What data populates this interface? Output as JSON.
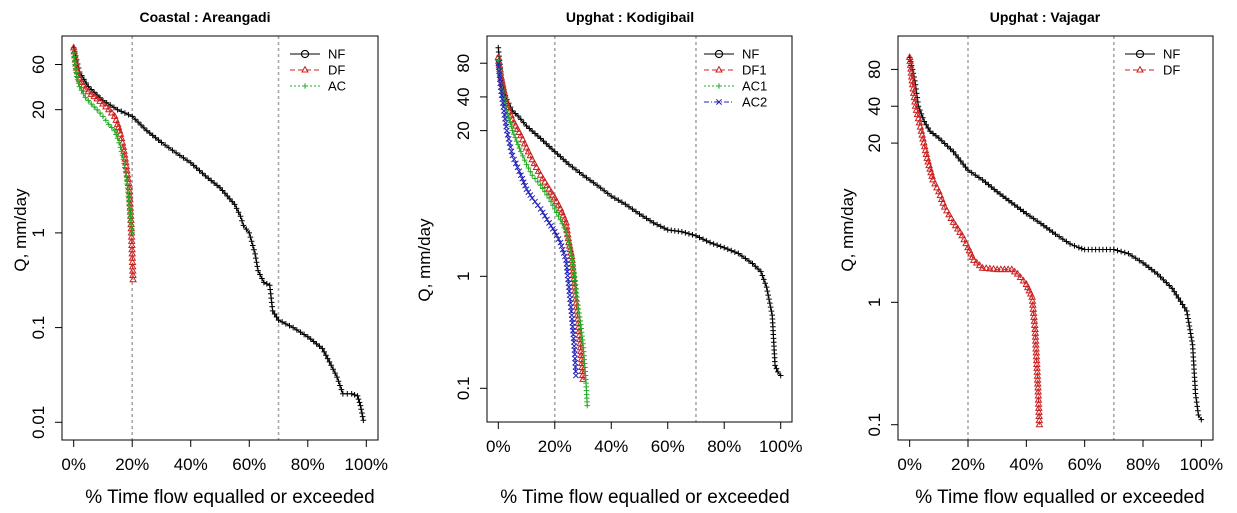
{
  "chart_data": [
    {
      "type": "line",
      "title": "Coastal : Areangadi",
      "xlabel": "% Time flow equalled or exceeded",
      "ylabel": "Q, mm/day",
      "y_scale": "log",
      "xlim": [
        0,
        100
      ],
      "ylim": [
        0.0065,
        120
      ],
      "x_ticks": [
        0,
        20,
        40,
        60,
        80,
        100
      ],
      "x_tick_labels": [
        "0%",
        "20%",
        "40%",
        "60%",
        "80%",
        "100%"
      ],
      "y_ticks": [
        0.01,
        0.1,
        1,
        20,
        60
      ],
      "y_tick_labels": [
        "0.01",
        "0.1",
        "1",
        "20",
        "60"
      ],
      "vlines": [
        20,
        70
      ],
      "legend_position": "top-right",
      "series": [
        {
          "name": "NF",
          "color": "#000000",
          "dash": "",
          "marker": "plus",
          "x": [
            0,
            2,
            5,
            10,
            15,
            20,
            25,
            30,
            35,
            40,
            45,
            50,
            55,
            57,
            58,
            60,
            62,
            63,
            65,
            67,
            68,
            70,
            75,
            80,
            85,
            88,
            90,
            92,
            95,
            97,
            98,
            99
          ],
          "y": [
            90,
            50,
            35,
            25,
            20,
            17,
            12,
            9,
            7,
            5.5,
            4,
            3,
            2,
            1.5,
            1.2,
            1,
            0.6,
            0.4,
            0.3,
            0.28,
            0.15,
            0.12,
            0.1,
            0.08,
            0.06,
            0.04,
            0.03,
            0.02,
            0.02,
            0.019,
            0.015,
            0.0105
          ]
        },
        {
          "name": "DF",
          "color": "#cc2020",
          "dash": "5,3",
          "marker": "triangle",
          "x": [
            0,
            1,
            2,
            4,
            6,
            8,
            10,
            12,
            14,
            15,
            16,
            17,
            18,
            19,
            19.5,
            20,
            20.3
          ],
          "y": [
            90,
            55,
            42,
            33,
            29,
            26,
            23,
            20,
            17,
            14,
            11,
            8,
            5,
            3,
            1.5,
            0.6,
            0.32
          ]
        },
        {
          "name": "AC",
          "color": "#22aa22",
          "dash": "2,2",
          "marker": "plus",
          "x": [
            0,
            1,
            2,
            4,
            6,
            8,
            10,
            12,
            14,
            15,
            16,
            17,
            18,
            19,
            20
          ],
          "y": [
            80,
            45,
            35,
            27,
            23,
            20,
            17,
            14,
            12,
            10,
            8,
            6,
            4,
            2,
            1
          ]
        }
      ]
    },
    {
      "type": "line",
      "title": "Upghat : Kodigibail",
      "xlabel": "% Time flow equalled or exceeded",
      "ylabel": "Q, mm/day",
      "y_scale": "log",
      "xlim": [
        0,
        100
      ],
      "ylim": [
        0.05,
        140
      ],
      "x_ticks": [
        0,
        20,
        40,
        60,
        80,
        100
      ],
      "x_tick_labels": [
        "0%",
        "20%",
        "40%",
        "60%",
        "80%",
        "100%"
      ],
      "y_ticks": [
        0.1,
        1,
        20,
        40,
        80
      ],
      "y_tick_labels": [
        "0.1",
        "1",
        "20",
        "40",
        "80"
      ],
      "vlines": [
        20,
        70
      ],
      "legend_position": "top-right",
      "series": [
        {
          "name": "NF",
          "color": "#000000",
          "dash": "",
          "marker": "plus",
          "x": [
            0,
            1,
            2,
            3,
            5,
            7,
            10,
            15,
            20,
            25,
            30,
            35,
            40,
            45,
            50,
            55,
            60,
            65,
            70,
            75,
            80,
            85,
            90,
            93,
            95,
            97,
            98,
            99,
            100
          ],
          "y": [
            110,
            60,
            45,
            38,
            30,
            27,
            22,
            17,
            13,
            10,
            8,
            6.5,
            5.2,
            4.4,
            3.6,
            3,
            2.6,
            2.5,
            2.3,
            2,
            1.8,
            1.6,
            1.3,
            1.1,
            0.8,
            0.45,
            0.16,
            0.14,
            0.13
          ]
        },
        {
          "name": "DF1",
          "color": "#cc2020",
          "dash": "5,3",
          "marker": "triangle",
          "x": [
            0,
            1,
            2,
            3,
            5,
            8,
            10,
            12,
            15,
            18,
            20,
            22,
            24,
            25,
            26,
            27,
            28,
            29,
            30
          ],
          "y": [
            90,
            60,
            45,
            35,
            25,
            18,
            14,
            11,
            8,
            6,
            5,
            4,
            3,
            2,
            1.5,
            0.8,
            0.45,
            0.25,
            0.12
          ]
        },
        {
          "name": "AC1",
          "color": "#22aa22",
          "dash": "2,2",
          "marker": "plus",
          "x": [
            0,
            1,
            2,
            3,
            5,
            8,
            10,
            12,
            15,
            18,
            20,
            22,
            24,
            25,
            26,
            27,
            28,
            29,
            30,
            31,
            31.5
          ],
          "y": [
            85,
            55,
            40,
            30,
            20,
            13,
            10,
            8,
            6.5,
            5,
            4,
            3.2,
            2.5,
            2,
            1.5,
            1,
            0.6,
            0.4,
            0.25,
            0.12,
            0.07
          ]
        },
        {
          "name": "AC2",
          "color": "#2222bb",
          "dash": "5,2,1,2",
          "marker": "cross",
          "x": [
            0,
            1,
            2,
            3,
            5,
            8,
            10,
            12,
            15,
            18,
            20,
            22,
            24,
            25,
            26,
            27,
            27.5
          ],
          "y": [
            80,
            45,
            30,
            20,
            12,
            8,
            6,
            5,
            4,
            3,
            2.5,
            2,
            1.4,
            0.8,
            0.45,
            0.22,
            0.13
          ]
        }
      ]
    },
    {
      "type": "line",
      "title": "Upghat : Vajagar",
      "xlabel": "% Time flow equalled or exceeded",
      "ylabel": "Q, mm/day",
      "y_scale": "log",
      "xlim": [
        0,
        100
      ],
      "ylim": [
        0.075,
        150
      ],
      "x_ticks": [
        0,
        20,
        40,
        60,
        80,
        100
      ],
      "x_tick_labels": [
        "0%",
        "20%",
        "40%",
        "60%",
        "80%",
        "100%"
      ],
      "y_ticks": [
        0.1,
        1,
        20,
        40,
        80
      ],
      "y_tick_labels": [
        "0.1",
        "1",
        "20",
        "40",
        "80"
      ],
      "vlines": [
        20,
        70
      ],
      "legend_position": "top-right",
      "series": [
        {
          "name": "NF",
          "color": "#000000",
          "dash": "",
          "marker": "plus",
          "x": [
            0,
            1,
            2,
            3,
            5,
            7,
            10,
            15,
            20,
            25,
            30,
            35,
            40,
            45,
            50,
            55,
            58,
            60,
            65,
            70,
            75,
            80,
            85,
            90,
            95,
            97,
            98,
            99,
            100
          ],
          "y": [
            100,
            80,
            60,
            40,
            30,
            25,
            22,
            17,
            12,
            10,
            8,
            6.5,
            5.3,
            4.4,
            3.6,
            3,
            2.8,
            2.7,
            2.7,
            2.7,
            2.5,
            2.1,
            1.7,
            1.3,
            0.85,
            0.45,
            0.18,
            0.12,
            0.11
          ]
        },
        {
          "name": "DF",
          "color": "#cc2020",
          "dash": "5,3",
          "marker": "triangle",
          "x": [
            0,
            1,
            2,
            4,
            6,
            8,
            10,
            12,
            15,
            18,
            20,
            22,
            25,
            30,
            35,
            37,
            40,
            42,
            43,
            44,
            44.5
          ],
          "y": [
            100,
            60,
            40,
            25,
            15,
            10,
            8,
            6,
            4.5,
            3.5,
            2.8,
            2.2,
            1.9,
            1.85,
            1.85,
            1.7,
            1.4,
            1.1,
            0.6,
            0.2,
            0.1
          ]
        }
      ]
    }
  ]
}
